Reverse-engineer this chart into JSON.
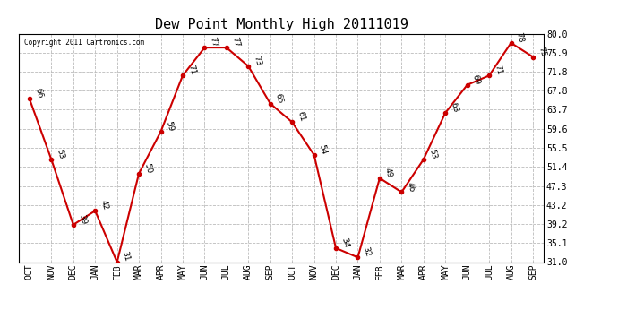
{
  "title": "Dew Point Monthly High 20111019",
  "copyright": "Copyright 2011 Cartronics.com",
  "months": [
    "OCT",
    "NOV",
    "DEC",
    "JAN",
    "FEB",
    "MAR",
    "APR",
    "MAY",
    "JUN",
    "JUL",
    "AUG",
    "SEP",
    "OCT",
    "NOV",
    "DEC",
    "JAN",
    "FEB",
    "MAR",
    "APR",
    "MAY",
    "JUN",
    "JUL",
    "AUG",
    "SEP"
  ],
  "values": [
    66,
    53,
    39,
    42,
    31,
    50,
    59,
    71,
    77,
    77,
    73,
    65,
    61,
    54,
    34,
    32,
    49,
    46,
    53,
    63,
    69,
    71,
    78,
    75
  ],
  "ylim": [
    31.0,
    80.0
  ],
  "yticks": [
    31.0,
    35.1,
    39.2,
    43.2,
    47.3,
    51.4,
    55.5,
    59.6,
    63.7,
    67.8,
    71.8,
    75.9,
    80.0
  ],
  "line_color": "#cc0000",
  "marker_color": "#cc0000",
  "bg_color": "#ffffff",
  "grid_color": "#bbbbbb",
  "title_fontsize": 11,
  "label_fontsize": 7,
  "annotation_fontsize": 6.5
}
